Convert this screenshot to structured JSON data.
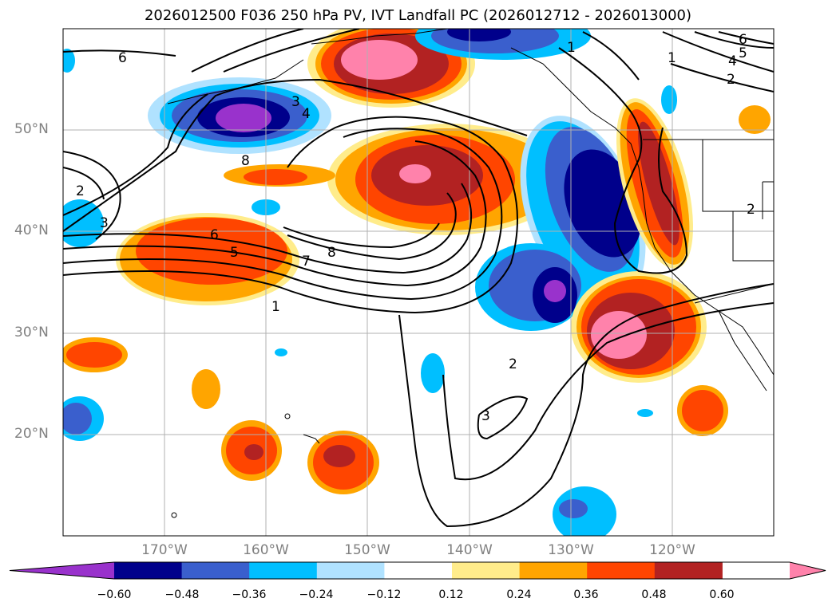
{
  "title": "2026012500 F036 250 hPa PV, IVT Landfall PC (2026012712 - 2026013000)",
  "lat_labels": [
    "50°N",
    "40°N",
    "30°N",
    "20°N"
  ],
  "lon_labels": [
    "170°W",
    "160°W",
    "150°W",
    "140°W",
    "130°W",
    "120°W"
  ],
  "colorbar": {
    "ticks": [
      "−0.60",
      "−0.48",
      "−0.36",
      "−0.24",
      "−0.12",
      "0.12",
      "0.24",
      "0.36",
      "0.48",
      "0.60"
    ],
    "colors": [
      "#9932cc",
      "#00008b",
      "#3a5fcd",
      "#00bfff",
      "#b0e2ff",
      "#ffffff",
      "#ffec8b",
      "#ffa500",
      "#ff4500",
      "#b22222",
      "#ff82ab"
    ]
  },
  "contour_labels": [
    "6",
    "1",
    "6",
    "5",
    "4",
    "2",
    "1",
    "3",
    "4",
    "8",
    "2",
    "3",
    "6",
    "5",
    "7",
    "8",
    "1",
    "2",
    "3",
    "2"
  ],
  "colors": {
    "lat_lon_label": "#808080",
    "grid": "#b0b0b0",
    "contour": "#000000"
  }
}
